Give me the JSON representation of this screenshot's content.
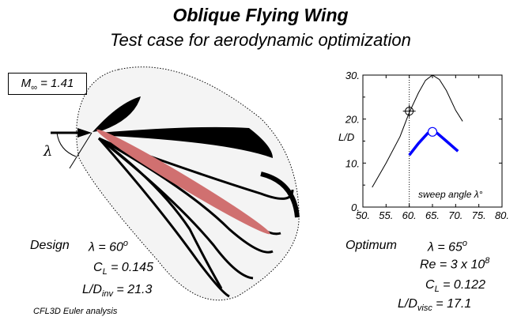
{
  "header": {
    "title": "Oblique Flying Wing",
    "subtitle": "Test case for aerodynamic optimization"
  },
  "flow": {
    "mach_label": "M",
    "mach_sub": "∞",
    "mach_value": " = 1.41",
    "lambda_symbol": "λ"
  },
  "design": {
    "label": "Design",
    "lambda": "λ = 60",
    "lambda_sup": "o",
    "cl": "C",
    "cl_sub": "L",
    "cl_value": " = 0.145",
    "ld": "L/D",
    "ld_sub": "inv",
    "ld_value": " = 21.3",
    "analysis": "CFL3D Euler analysis"
  },
  "optimum": {
    "label": "Optimum",
    "lambda": "λ = 65",
    "lambda_sup": "o",
    "re": "Re = 3 x 10",
    "re_sup": "8",
    "cl": "C",
    "cl_sub": "L",
    "cl_value": " = 0.122",
    "ld": "L/D",
    "ld_sub": "visc",
    "ld_value": " = 17.1"
  },
  "colors": {
    "wing": "#d07070",
    "inviscid": "#000000",
    "viscous": "#0000ff"
  },
  "chart_data": {
    "type": "line",
    "xlabel": "sweep angle λ°",
    "ylabel": "L/D",
    "xlim": [
      50,
      80
    ],
    "ylim": [
      0,
      30
    ],
    "xticks": [
      "50.",
      "55.",
      "60.",
      "65.",
      "70.",
      "75.",
      "80."
    ],
    "yticks": [
      "0.",
      "10.",
      "20.",
      "30."
    ],
    "vline_x": 60,
    "series": [
      {
        "name": "inviscid",
        "x": [
          52,
          55,
          58,
          60,
          62,
          63.5,
          65,
          66.5,
          68,
          70,
          71.5
        ],
        "y": [
          4.5,
          10,
          16,
          21.5,
          26,
          28.8,
          30,
          29,
          26.5,
          22,
          19.5
        ],
        "marker": {
          "x": 60,
          "y": 21.8,
          "shape": "crosshair"
        }
      },
      {
        "name": "viscous",
        "x": [
          60,
          62,
          64,
          65,
          66,
          68,
          70.5
        ],
        "y": [
          11.8,
          14.5,
          16.8,
          17.1,
          16.8,
          15,
          12.7
        ],
        "marker": {
          "x": 65,
          "y": 17.1,
          "shape": "circle"
        }
      }
    ]
  }
}
